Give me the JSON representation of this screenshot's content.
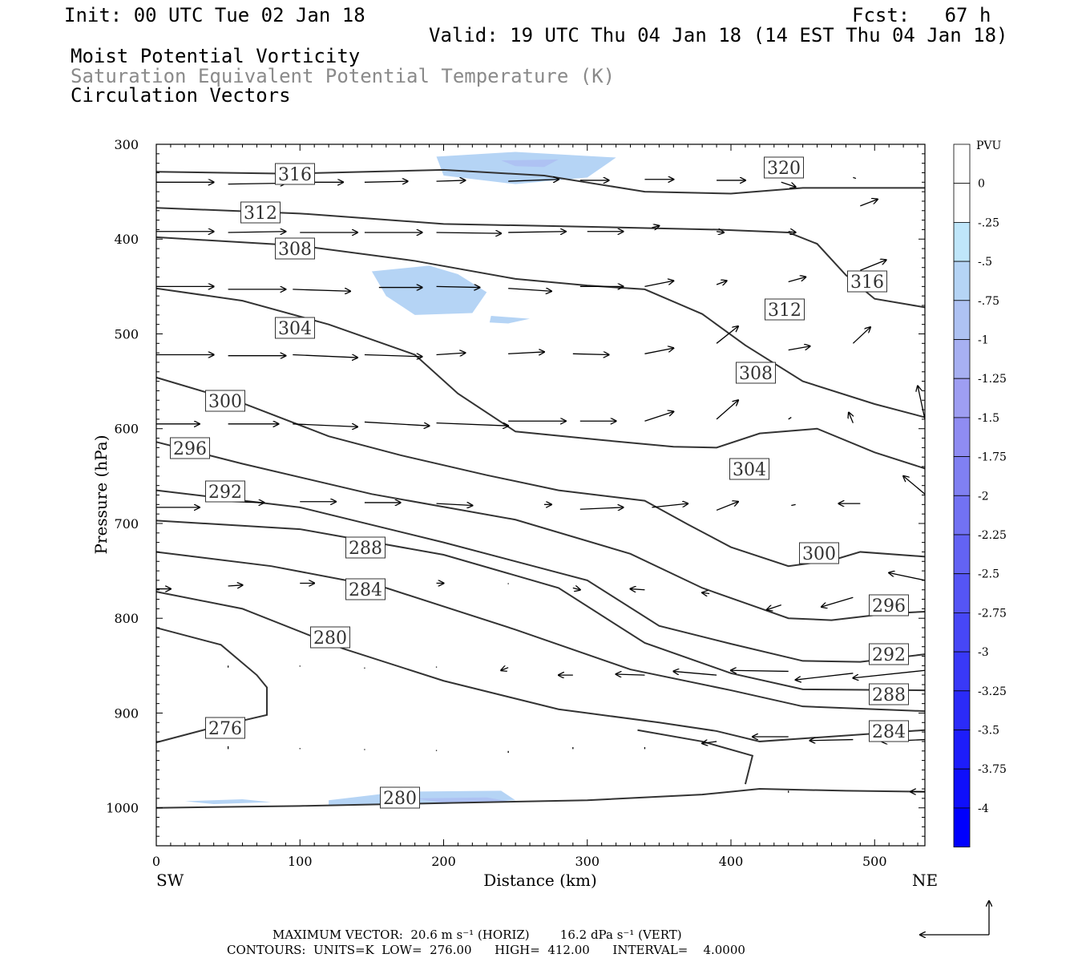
{
  "header": {
    "init": "Init: 00 UTC Tue 02 Jan 18",
    "fcst": "Fcst:   67 h",
    "valid": "Valid: 19 UTC Thu 04 Jan 18 (14 EST Thu 04 Jan 18)",
    "field1": "Moist Potential Vorticity",
    "field2": "Saturation Equivalent Potential Temperature (K)",
    "field3": "Circulation Vectors"
  },
  "footer": {
    "max_vector": "MAXIMUM VECTOR:  20.6 m s⁻¹ (HORIZ)        16.2 dPa s⁻¹ (VERT)",
    "contours": "CONTOURS:  UNITS=K  LOW=  276.00      HIGH=  412.00      INTERVAL=    4.0000"
  },
  "chart_data": {
    "type": "cross-section",
    "xlabel": "Distance (km)",
    "ylabel": "Pressure (hPa)",
    "xlim": [
      0,
      535
    ],
    "ylim": [
      1040,
      300
    ],
    "x_ticks": [
      0,
      100,
      200,
      300,
      400,
      500
    ],
    "y_ticks": [
      300,
      400,
      500,
      600,
      700,
      800,
      900,
      1000
    ],
    "x_end_labels": [
      "SW",
      "NE"
    ],
    "colorbar": {
      "unit": "PVU",
      "labels": [
        "0",
        "-.25",
        "-.5",
        "-.75",
        "-1",
        "-1.25",
        "-1.5",
        "-1.75",
        "-2",
        "-2.25",
        "-2.5",
        "-2.75",
        "-3",
        "-3.25",
        "-3.5",
        "-3.75",
        "-4"
      ],
      "colors": [
        "#ffffff",
        "#ffffff",
        "#bfe6fa",
        "#b5d4f5",
        "#aec2f3",
        "#a7b0f2",
        "#9e9ef2",
        "#8f8cf2",
        "#8080f2",
        "#7272f3",
        "#6363f4",
        "#5555f5",
        "#4747f6",
        "#3939f7",
        "#2b2bf8",
        "#1d1dfa",
        "#0f0ffb",
        "#0000fd"
      ]
    },
    "contour_labels": [
      "316",
      "320",
      "312",
      "316",
      "308",
      "312",
      "304",
      "308",
      "300",
      "304",
      "296",
      "292",
      "300",
      "288",
      "284",
      "296",
      "280",
      "292",
      "288",
      "276",
      "284",
      "280"
    ],
    "theta_contours": [
      {
        "level": 320,
        "points": [
          [
            0,
            329
          ],
          [
            90,
            331
          ],
          [
            200,
            327
          ],
          [
            270,
            333
          ],
          [
            340,
            350
          ],
          [
            400,
            352
          ],
          [
            450,
            346
          ],
          [
            535,
            346
          ]
        ]
      },
      {
        "level": 316,
        "points": [
          [
            0,
            367
          ],
          [
            100,
            373
          ],
          [
            200,
            384
          ],
          [
            300,
            387
          ],
          [
            390,
            390
          ],
          [
            440,
            393
          ],
          [
            460,
            405
          ],
          [
            480,
            438
          ],
          [
            500,
            463
          ],
          [
            535,
            472
          ]
        ]
      },
      {
        "level": 312,
        "points": [
          [
            0,
            398
          ],
          [
            100,
            407
          ],
          [
            180,
            423
          ],
          [
            250,
            442
          ],
          [
            300,
            449
          ],
          [
            340,
            453
          ],
          [
            380,
            479
          ],
          [
            410,
            512
          ],
          [
            450,
            550
          ],
          [
            500,
            574
          ],
          [
            535,
            588
          ]
        ]
      },
      {
        "level": 308,
        "points": [
          [
            0,
            452
          ],
          [
            60,
            465
          ],
          [
            120,
            490
          ],
          [
            180,
            522
          ],
          [
            210,
            563
          ],
          [
            250,
            603
          ],
          [
            310,
            612
          ],
          [
            360,
            619
          ],
          [
            390,
            620
          ],
          [
            420,
            605
          ],
          [
            460,
            600
          ],
          [
            500,
            625
          ],
          [
            535,
            642
          ]
        ]
      },
      {
        "level": 304,
        "points": [
          [
            0,
            546
          ],
          [
            60,
            573
          ],
          [
            120,
            608
          ],
          [
            170,
            628
          ],
          [
            230,
            649
          ],
          [
            280,
            665
          ],
          [
            340,
            676
          ],
          [
            370,
            701
          ],
          [
            400,
            725
          ],
          [
            440,
            745
          ],
          [
            470,
            739
          ],
          [
            490,
            730
          ],
          [
            535,
            735
          ]
        ]
      },
      {
        "level": 300,
        "points": [
          [
            0,
            614
          ],
          [
            60,
            637
          ],
          [
            150,
            669
          ],
          [
            250,
            696
          ],
          [
            330,
            732
          ],
          [
            380,
            768
          ],
          [
            440,
            800
          ],
          [
            470,
            802
          ],
          [
            510,
            795
          ],
          [
            535,
            793
          ]
        ]
      },
      {
        "level": 296,
        "points": [
          [
            0,
            665
          ],
          [
            100,
            683
          ],
          [
            200,
            720
          ],
          [
            300,
            760
          ],
          [
            350,
            808
          ],
          [
            400,
            827
          ],
          [
            450,
            845
          ],
          [
            490,
            846
          ],
          [
            535,
            838
          ]
        ]
      },
      {
        "level": 292,
        "points": [
          [
            0,
            697
          ],
          [
            100,
            706
          ],
          [
            200,
            733
          ],
          [
            280,
            768
          ],
          [
            340,
            826
          ],
          [
            400,
            858
          ],
          [
            450,
            875
          ],
          [
            535,
            876
          ]
        ]
      },
      {
        "level": 288,
        "points": [
          [
            0,
            730
          ],
          [
            80,
            745
          ],
          [
            160,
            768
          ],
          [
            250,
            812
          ],
          [
            330,
            854
          ],
          [
            400,
            876
          ],
          [
            450,
            893
          ],
          [
            535,
            898
          ]
        ]
      },
      {
        "level": 284,
        "points": [
          [
            0,
            772
          ],
          [
            60,
            790
          ],
          [
            130,
            832
          ],
          [
            200,
            866
          ],
          [
            280,
            896
          ],
          [
            350,
            910
          ],
          [
            390,
            919
          ],
          [
            420,
            930
          ],
          [
            535,
            918
          ]
        ]
      },
      {
        "level": 280,
        "points": [
          [
            0,
            810
          ],
          [
            45,
            828
          ],
          [
            70,
            860
          ],
          [
            77,
            873
          ],
          [
            77,
            902
          ],
          [
            40,
            915
          ],
          [
            0,
            931
          ]
        ]
      },
      {
        "level": 280.1,
        "points": [
          [
            0,
            1000
          ],
          [
            100,
            998
          ],
          [
            200,
            995
          ],
          [
            300,
            992
          ],
          [
            380,
            986
          ],
          [
            420,
            980
          ],
          [
            480,
            982
          ],
          [
            535,
            983
          ]
        ]
      },
      {
        "level": 284.1,
        "points": [
          [
            335,
            918
          ],
          [
            380,
            930
          ],
          [
            415,
            945
          ],
          [
            410,
            975
          ]
        ]
      }
    ],
    "pv_areas": [
      {
        "value": -0.5,
        "points": [
          [
            195,
            313
          ],
          [
            250,
            308
          ],
          [
            320,
            314
          ],
          [
            300,
            335
          ],
          [
            250,
            342
          ],
          [
            200,
            333
          ]
        ]
      },
      {
        "value": -0.75,
        "points": [
          [
            240,
            317
          ],
          [
            280,
            316
          ],
          [
            270,
            324
          ],
          [
            250,
            323
          ]
        ]
      },
      {
        "value": -0.5,
        "points": [
          [
            150,
            434
          ],
          [
            190,
            428
          ],
          [
            210,
            437
          ],
          [
            230,
            456
          ],
          [
            220,
            478
          ],
          [
            180,
            480
          ],
          [
            160,
            460
          ]
        ]
      },
      {
        "value": -0.5,
        "points": [
          [
            233,
            481
          ],
          [
            260,
            484
          ],
          [
            245,
            489
          ],
          [
            232,
            488
          ]
        ]
      },
      {
        "value": -0.5,
        "points": [
          [
            20,
            993
          ],
          [
            60,
            991
          ],
          [
            80,
            994
          ],
          [
            40,
            996
          ]
        ]
      },
      {
        "value": -0.5,
        "points": [
          [
            120,
            992
          ],
          [
            170,
            983
          ],
          [
            240,
            982
          ],
          [
            250,
            992
          ],
          [
            200,
            996
          ],
          [
            120,
            997
          ]
        ]
      },
      {
        "value": -0.75,
        "points": [
          [
            180,
            990
          ],
          [
            230,
            989
          ],
          [
            245,
            993
          ],
          [
            200,
            995
          ]
        ]
      }
    ],
    "vectors": [
      [
        0,
        340,
        40,
        340
      ],
      [
        50,
        342,
        90,
        341
      ],
      [
        95,
        340,
        130,
        340
      ],
      [
        145,
        340,
        175,
        339
      ],
      [
        195,
        339,
        215,
        338
      ],
      [
        245,
        339,
        280,
        337
      ],
      [
        295,
        338,
        315,
        338
      ],
      [
        340,
        337,
        360,
        337
      ],
      [
        390,
        338,
        410,
        338
      ],
      [
        435,
        340,
        445,
        345
      ],
      [
        485,
        335,
        487,
        336
      ],
      [
        0,
        392,
        40,
        392
      ],
      [
        50,
        393,
        90,
        392
      ],
      [
        100,
        393,
        140,
        393
      ],
      [
        145,
        393,
        185,
        393
      ],
      [
        195,
        393,
        240,
        394
      ],
      [
        245,
        393,
        285,
        392
      ],
      [
        300,
        392,
        325,
        392
      ],
      [
        345,
        388,
        350,
        386
      ],
      [
        390,
        392,
        395,
        393
      ],
      [
        440,
        392,
        445,
        393
      ],
      [
        490,
        365,
        502,
        358
      ],
      [
        0,
        450,
        40,
        450
      ],
      [
        50,
        453,
        90,
        453
      ],
      [
        95,
        453,
        135,
        455
      ],
      [
        155,
        451,
        185,
        451
      ],
      [
        195,
        450,
        225,
        451
      ],
      [
        245,
        452,
        275,
        455
      ],
      [
        295,
        450,
        325,
        450
      ],
      [
        340,
        450,
        360,
        444
      ],
      [
        390,
        448,
        397,
        444
      ],
      [
        440,
        445,
        452,
        440
      ],
      [
        490,
        433,
        508,
        422
      ],
      [
        0,
        522,
        40,
        522
      ],
      [
        50,
        523,
        90,
        523
      ],
      [
        95,
        522,
        140,
        525
      ],
      [
        145,
        522,
        185,
        524
      ],
      [
        195,
        522,
        215,
        520
      ],
      [
        245,
        521,
        270,
        519
      ],
      [
        290,
        521,
        315,
        522
      ],
      [
        340,
        521,
        360,
        515
      ],
      [
        390,
        510,
        405,
        492
      ],
      [
        440,
        517,
        455,
        513
      ],
      [
        485,
        510,
        497,
        493
      ],
      [
        0,
        595,
        30,
        595
      ],
      [
        50,
        595,
        85,
        595
      ],
      [
        95,
        595,
        140,
        598
      ],
      [
        145,
        593,
        190,
        597
      ],
      [
        195,
        594,
        245,
        597
      ],
      [
        245,
        592,
        285,
        592
      ],
      [
        295,
        592,
        320,
        592
      ],
      [
        340,
        592,
        360,
        582
      ],
      [
        390,
        590,
        405,
        570
      ],
      [
        440,
        590,
        442,
        588
      ],
      [
        485,
        594,
        482,
        583
      ],
      [
        535,
        590,
        530,
        555
      ],
      [
        0,
        683,
        30,
        683
      ],
      [
        50,
        677,
        75,
        678
      ],
      [
        100,
        677,
        125,
        677
      ],
      [
        145,
        678,
        170,
        678
      ],
      [
        195,
        679,
        220,
        681
      ],
      [
        270,
        680,
        275,
        680
      ],
      [
        295,
        685,
        325,
        683
      ],
      [
        345,
        683,
        370,
        679
      ],
      [
        390,
        686,
        405,
        677
      ],
      [
        445,
        680,
        442,
        681
      ],
      [
        490,
        679,
        475,
        679
      ],
      [
        535,
        669,
        520,
        650
      ],
      [
        0,
        769,
        10,
        769
      ],
      [
        50,
        766,
        60,
        765
      ],
      [
        100,
        763,
        110,
        763
      ],
      [
        195,
        763,
        200,
        763
      ],
      [
        245,
        763,
        245,
        764
      ],
      [
        290,
        768,
        295,
        770
      ],
      [
        340,
        770,
        330,
        769
      ],
      [
        385,
        774,
        380,
        773
      ],
      [
        435,
        786,
        425,
        791
      ],
      [
        485,
        778,
        463,
        788
      ],
      [
        535,
        760,
        510,
        752
      ],
      [
        50,
        852,
        50,
        850
      ],
      [
        100,
        850,
        100,
        851
      ],
      [
        145,
        852,
        145,
        853
      ],
      [
        195,
        852,
        195,
        851
      ],
      [
        245,
        852,
        240,
        855
      ],
      [
        290,
        860,
        280,
        860
      ],
      [
        340,
        860,
        320,
        859
      ],
      [
        390,
        860,
        360,
        856
      ],
      [
        440,
        856,
        400,
        855
      ],
      [
        485,
        858,
        445,
        865
      ],
      [
        535,
        855,
        485,
        863
      ],
      [
        50,
        938,
        50,
        935
      ],
      [
        100,
        937,
        100,
        938
      ],
      [
        145,
        938,
        145,
        939
      ],
      [
        195,
        940,
        195,
        939
      ],
      [
        245,
        940,
        245,
        942
      ],
      [
        290,
        938,
        290,
        936
      ],
      [
        340,
        936,
        340,
        938
      ],
      [
        390,
        930,
        380,
        932
      ],
      [
        440,
        925,
        415,
        925
      ],
      [
        485,
        928,
        455,
        929
      ],
      [
        535,
        928,
        505,
        930
      ],
      [
        440,
        982,
        440,
        984
      ],
      [
        535,
        983,
        525,
        983
      ]
    ]
  }
}
